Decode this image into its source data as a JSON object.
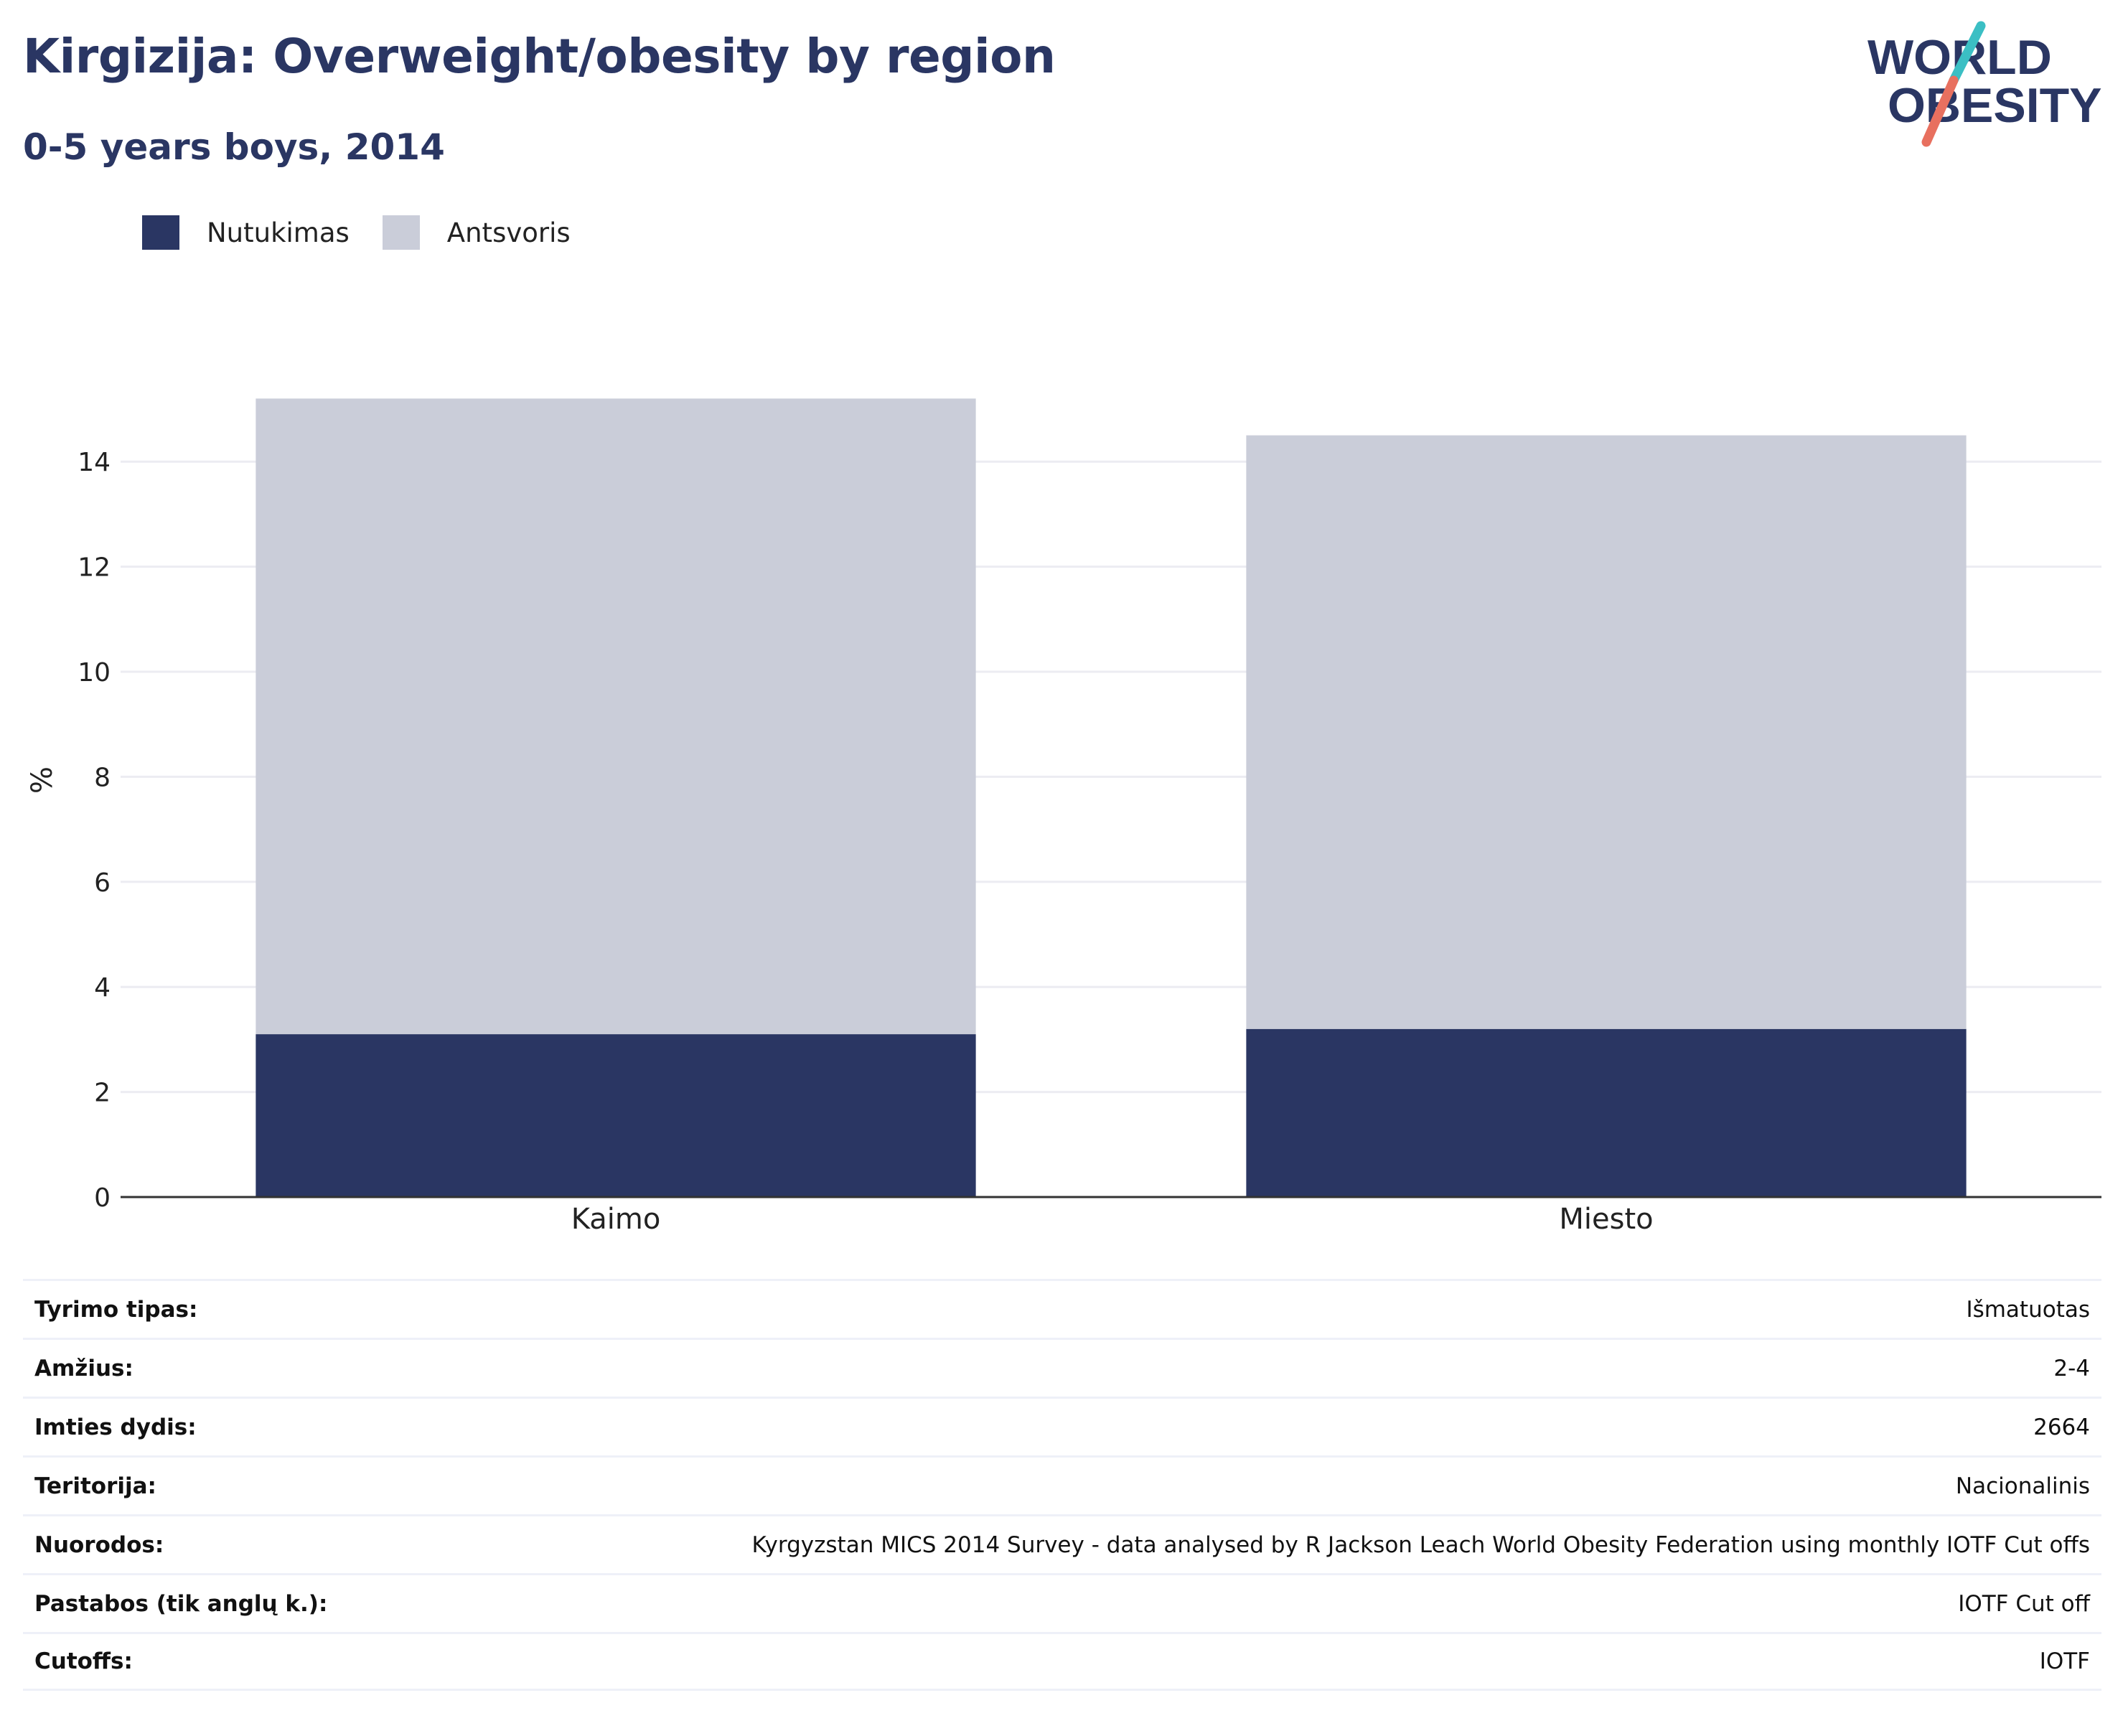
{
  "header": {
    "title": "Kirgizija: Overweight/obesity by region",
    "subtitle": "0-5 years boys, 2014"
  },
  "logo": {
    "line1": "WORLD",
    "line2": "OBESITY",
    "colors": {
      "text": "#2a3663",
      "slash_top": "#3bbfc4",
      "slash_bottom": "#e8705f"
    }
  },
  "colors": {
    "obesity": "#2a3663",
    "overweight": "#cacdd9",
    "grid": "#ececf2",
    "axis": "#333333"
  },
  "chart_data": {
    "type": "bar",
    "stacked": true,
    "categories": [
      "Kaimo",
      "Miesto"
    ],
    "series": [
      {
        "name": "Nutukimas",
        "values": [
          3.1,
          3.2
        ],
        "color": "#2a3663"
      },
      {
        "name": "Antsvoris",
        "values": [
          12.1,
          11.3
        ],
        "color": "#cacdd9"
      }
    ],
    "ylabel": "%",
    "ylim": [
      0,
      15.2
    ],
    "yticks": [
      0,
      2,
      4,
      6,
      8,
      10,
      12,
      14
    ],
    "grid": true,
    "legend_position": "top-left"
  },
  "info_table": [
    {
      "label": "Tyrimo tipas:",
      "value": "Išmatuotas"
    },
    {
      "label": "Amžius:",
      "value": "2-4"
    },
    {
      "label": "Imties dydis:",
      "value": "2664"
    },
    {
      "label": "Teritorija:",
      "value": "Nacionalinis"
    },
    {
      "label": "Nuorodos:",
      "value": "Kyrgyzstan MICS 2014 Survey - data analysed by R Jackson Leach World Obesity Federation using monthly IOTF Cut offs"
    },
    {
      "label": "Pastabos (tik anglų k.):",
      "value": "IOTF Cut off"
    },
    {
      "label": "Cutoffs:",
      "value": "IOTF"
    }
  ]
}
